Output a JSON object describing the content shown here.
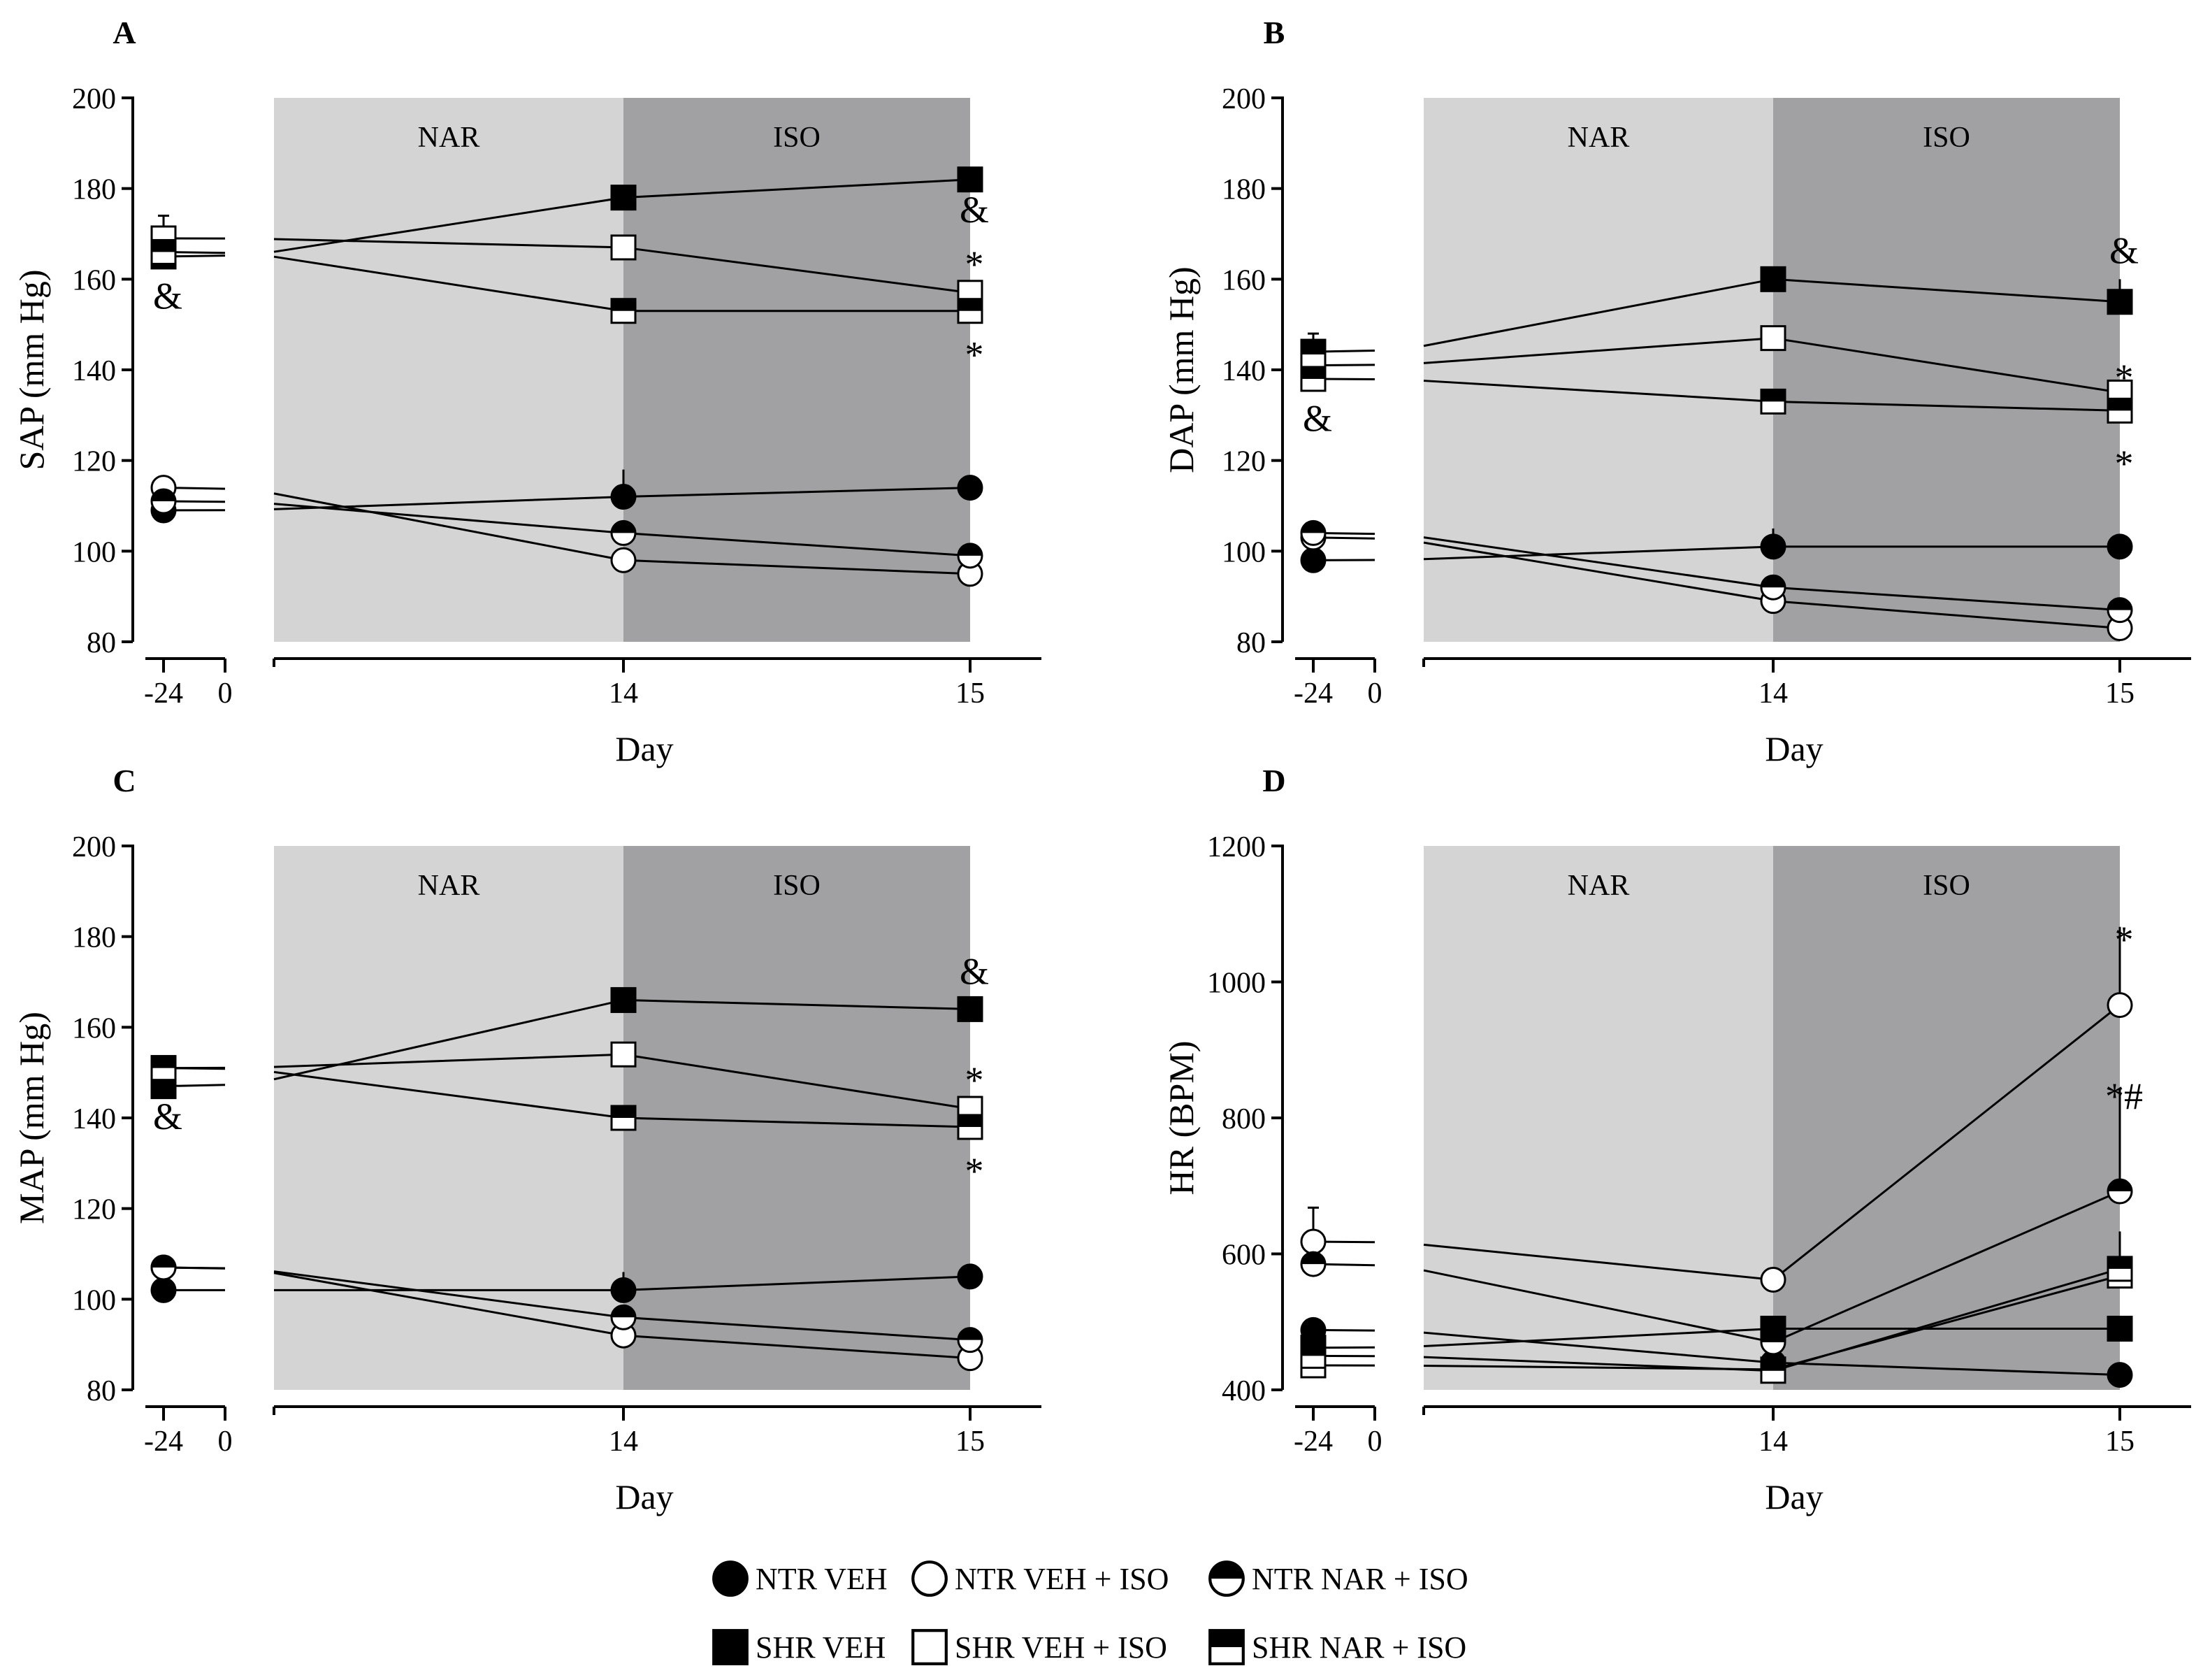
{
  "legend": [
    {
      "label": "NTR VEH",
      "marker": "filled-circle-icon"
    },
    {
      "label": "NTR VEH + ISO",
      "marker": "open-circle-icon"
    },
    {
      "label": "NTR NAR + ISO",
      "marker": "half-filled-circle-icon"
    },
    {
      "label": "SHR VEH",
      "marker": "filled-square-icon"
    },
    {
      "label": "SHR VEH + ISO",
      "marker": "open-square-icon"
    },
    {
      "label": "SHR NAR + ISO",
      "marker": "half-filled-square-icon"
    }
  ],
  "chart_data": [
    {
      "panel": "A",
      "type": "line",
      "ylabel": "SAP (mm Hg)",
      "xlabel": "Day",
      "ylim": [
        80,
        200
      ],
      "yticks": [
        80,
        100,
        120,
        140,
        160,
        180,
        200
      ],
      "xticks": [
        "-24",
        "0",
        "14",
        "15"
      ],
      "phases": [
        "NAR",
        "ISO"
      ],
      "series": [
        {
          "marker": "filled-circle",
          "x": [
            -24,
            14,
            15
          ],
          "y": [
            109,
            112,
            114
          ],
          "baseline_err": 0,
          "err": [
            0,
            6,
            0
          ]
        },
        {
          "marker": "open-circle",
          "x": [
            -24,
            14,
            15
          ],
          "y": [
            114,
            98,
            95
          ],
          "baseline_err": 0,
          "err": [
            0,
            0,
            0
          ]
        },
        {
          "marker": "half-circle",
          "x": [
            -24,
            14,
            15
          ],
          "y": [
            111,
            104,
            99
          ],
          "baseline_err": 0,
          "err": [
            0,
            0,
            0
          ]
        },
        {
          "marker": "filled-square",
          "x": [
            -24,
            14,
            15
          ],
          "y": [
            165,
            178,
            182
          ],
          "baseline_err": 3,
          "err": [
            0,
            0,
            0
          ]
        },
        {
          "marker": "open-square",
          "x": [
            -24,
            14,
            15
          ],
          "y": [
            169,
            167,
            157
          ],
          "baseline_err": 5,
          "err": [
            0,
            0,
            0
          ]
        },
        {
          "marker": "half-square",
          "x": [
            -24,
            14,
            15
          ],
          "y": [
            166,
            153,
            153
          ],
          "baseline_err": 0,
          "err": [
            0,
            0,
            0
          ]
        }
      ],
      "annotations": [
        {
          "text": "&",
          "x": -24,
          "y": 156
        },
        {
          "text": "&",
          "x": 15,
          "y": 175
        },
        {
          "text": "*",
          "x": 15,
          "y": 163
        },
        {
          "text": "*",
          "x": 15,
          "y": 143
        }
      ]
    },
    {
      "panel": "B",
      "type": "line",
      "ylabel": "DAP (mm Hg)",
      "xlabel": "Day",
      "ylim": [
        80,
        200
      ],
      "yticks": [
        80,
        100,
        120,
        140,
        160,
        180,
        200
      ],
      "xticks": [
        "-24",
        "0",
        "14",
        "15"
      ],
      "phases": [
        "NAR",
        "ISO"
      ],
      "series": [
        {
          "marker": "filled-circle",
          "x": [
            -24,
            14,
            15
          ],
          "y": [
            98,
            101,
            101
          ],
          "baseline_err": 0,
          "err": [
            0,
            4,
            0
          ]
        },
        {
          "marker": "open-circle",
          "x": [
            -24,
            14,
            15
          ],
          "y": [
            103,
            89,
            83
          ],
          "baseline_err": 0,
          "err": [
            0,
            0,
            0
          ]
        },
        {
          "marker": "half-circle",
          "x": [
            -24,
            14,
            15
          ],
          "y": [
            104,
            92,
            87
          ],
          "baseline_err": 0,
          "err": [
            0,
            0,
            0
          ]
        },
        {
          "marker": "filled-square",
          "x": [
            -24,
            14,
            15
          ],
          "y": [
            144,
            160,
            155
          ],
          "baseline_err": 4,
          "err": [
            0,
            0,
            5
          ]
        },
        {
          "marker": "open-square",
          "x": [
            -24,
            14,
            15
          ],
          "y": [
            141,
            147,
            135
          ],
          "baseline_err": 0,
          "err": [
            0,
            0,
            0
          ]
        },
        {
          "marker": "half-square",
          "x": [
            -24,
            14,
            15
          ],
          "y": [
            138,
            133,
            131
          ],
          "baseline_err": 0,
          "err": [
            0,
            0,
            0
          ]
        }
      ],
      "annotations": [
        {
          "text": "&",
          "x": -24,
          "y": 129
        },
        {
          "text": "&",
          "x": 15,
          "y": 166
        },
        {
          "text": "*",
          "x": 15,
          "y": 138
        },
        {
          "text": "*",
          "x": 15,
          "y": 119
        }
      ]
    },
    {
      "panel": "C",
      "type": "line",
      "ylabel": "MAP (mm Hg)",
      "xlabel": "Day",
      "ylim": [
        80,
        200
      ],
      "yticks": [
        80,
        100,
        120,
        140,
        160,
        180,
        200
      ],
      "xticks": [
        "-24",
        "0",
        "14",
        "15"
      ],
      "phases": [
        "NAR",
        "ISO"
      ],
      "series": [
        {
          "marker": "filled-circle",
          "x": [
            -24,
            14,
            15
          ],
          "y": [
            102,
            102,
            105
          ],
          "baseline_err": 0,
          "err": [
            0,
            4,
            0
          ]
        },
        {
          "marker": "open-circle",
          "x": [
            -24,
            14,
            15
          ],
          "y": [
            107,
            92,
            87
          ],
          "baseline_err": 0,
          "err": [
            0,
            0,
            0
          ]
        },
        {
          "marker": "half-circle",
          "x": [
            -24,
            14,
            15
          ],
          "y": [
            107,
            96,
            91
          ],
          "baseline_err": 0,
          "err": [
            0,
            0,
            0
          ]
        },
        {
          "marker": "filled-square",
          "x": [
            -24,
            14,
            15
          ],
          "y": [
            147,
            166,
            164
          ],
          "baseline_err": 0,
          "err": [
            0,
            0,
            0
          ]
        },
        {
          "marker": "open-square",
          "x": [
            -24,
            14,
            15
          ],
          "y": [
            151,
            154,
            142
          ],
          "baseline_err": 0,
          "err": [
            0,
            0,
            0
          ]
        },
        {
          "marker": "half-square",
          "x": [
            -24,
            14,
            15
          ],
          "y": [
            151,
            140,
            138
          ],
          "baseline_err": 0,
          "err": [
            0,
            0,
            0
          ]
        }
      ],
      "annotations": [
        {
          "text": "&",
          "x": -24,
          "y": 140
        },
        {
          "text": "&",
          "x": 15,
          "y": 172
        },
        {
          "text": "*",
          "x": 15,
          "y": 148
        },
        {
          "text": "*",
          "x": 15,
          "y": 128
        }
      ]
    },
    {
      "panel": "D",
      "type": "line",
      "ylabel": "HR (BPM)",
      "xlabel": "Day",
      "ylim": [
        400,
        1200
      ],
      "yticks": [
        400,
        600,
        800,
        1000,
        1200
      ],
      "xticks": [
        "-24",
        "0",
        "14",
        "15"
      ],
      "phases": [
        "NAR",
        "ISO"
      ],
      "series": [
        {
          "marker": "filled-circle",
          "x": [
            -24,
            14,
            15
          ],
          "y": [
            488,
            440,
            422
          ],
          "baseline_err": 0,
          "err": [
            0,
            0,
            0
          ]
        },
        {
          "marker": "open-circle",
          "x": [
            -24,
            14,
            15
          ],
          "y": [
            618,
            562,
            966
          ],
          "baseline_err": 50,
          "err": [
            0,
            0,
            115
          ]
        },
        {
          "marker": "half-circle",
          "x": [
            -24,
            14,
            15
          ],
          "y": [
            585,
            470,
            692
          ],
          "baseline_err": 0,
          "err": [
            0,
            0,
            150
          ]
        },
        {
          "marker": "filled-square",
          "x": [
            -24,
            14,
            15
          ],
          "y": [
            462,
            490,
            490
          ],
          "baseline_err": 0,
          "err": [
            0,
            0,
            0
          ]
        },
        {
          "marker": "open-square",
          "x": [
            -24,
            14,
            15
          ],
          "y": [
            436,
            430,
            568
          ],
          "baseline_err": 0,
          "err": [
            0,
            0,
            0
          ]
        },
        {
          "marker": "half-square",
          "x": [
            -24,
            14,
            15
          ],
          "y": [
            450,
            428,
            578
          ],
          "baseline_err": 0,
          "err": [
            0,
            0,
            55
          ]
        }
      ],
      "annotations": [
        {
          "text": "*",
          "x": 15,
          "y": 1060
        },
        {
          "text": "*#",
          "x": 15,
          "y": 830
        }
      ]
    }
  ]
}
